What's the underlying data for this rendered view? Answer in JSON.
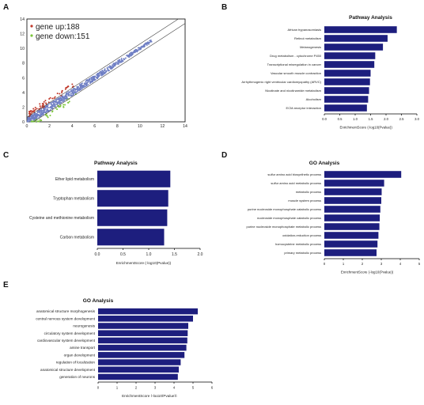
{
  "colors": {
    "bar": "#1d1e7e",
    "up": "#c0392b",
    "down": "#7cc63a",
    "cloud": "#6f7fc4",
    "axis": "#000000"
  },
  "chart_data": [
    {
      "panel": "A",
      "type": "scatter",
      "title": "",
      "xlim": [
        0,
        14
      ],
      "ylim": [
        0,
        14
      ],
      "xticks": [
        "0",
        "2",
        "4",
        "6",
        "8",
        "10",
        "12",
        "14"
      ],
      "yticks": [
        "0",
        "2",
        "4",
        "6",
        "8",
        "10",
        "12",
        "14"
      ],
      "legend": [
        "gene up:188",
        "gene down:151"
      ],
      "legend_placement": "top-left",
      "series": [
        {
          "name": "gene up:188",
          "count": 188
        },
        {
          "name": "gene down:151",
          "count": 151
        }
      ]
    },
    {
      "panel": "B",
      "type": "bar",
      "title": "Pathway Analysis",
      "xlabel": "EnrichmentScore (-log10(Pvalue))",
      "xlim": [
        0,
        3
      ],
      "xticks": [
        "0.0",
        "0.5",
        "1.0",
        "1.5",
        "2.0",
        "2.5",
        "3.0"
      ],
      "categories": [
        "African trypanosomiasis",
        "Retinol metabolism",
        "Melanogenesis",
        "Drug metabolism - cytochrome P450",
        "Transcriptional misregulation in cancer",
        "Vascular smooth muscle contraction",
        "Arrhythmogenic right ventricular cardiomyopathy (ARVC)",
        "Nicotinate and nicotinamide metabolism",
        "Alcoholism",
        "ECM-receptor interaction"
      ],
      "values": [
        2.35,
        2.05,
        1.9,
        1.65,
        1.62,
        1.5,
        1.48,
        1.45,
        1.42,
        1.38
      ]
    },
    {
      "panel": "C",
      "type": "bar",
      "title": "Pathway Analysis",
      "xlabel": "EnrichmentScore (-log10(Pvalue))",
      "xlim": [
        0,
        2
      ],
      "xticks": [
        "0.0",
        "0.5",
        "1.0",
        "1.5",
        "2.0"
      ],
      "categories": [
        "Ether lipid metabolism",
        "Tryptophan metabolism",
        "Cysteine and methionine metabolism",
        "Carbon metabolism"
      ],
      "values": [
        1.42,
        1.38,
        1.36,
        1.3
      ]
    },
    {
      "panel": "D",
      "type": "bar",
      "title": "GO Analysis",
      "xlabel": "EnrichmentScore (-log10(Pvalue))",
      "xlim": [
        0,
        5
      ],
      "xticks": [
        "0",
        "1",
        "2",
        "3",
        "4",
        "5"
      ],
      "categories": [
        "sulfur amino acid biosynthetic process",
        "sulfur amino acid metabolic process",
        "metabolic process",
        "muscle system process",
        "purine nucleoside monophosphate catabolic process",
        "nucleoside monophosphate catabolic process",
        "purine nucleoside monophosphate metabolic process",
        "oxidation-reduction process",
        "homocysteine metabolic process",
        "primary metabolic process"
      ],
      "values": [
        4.05,
        3.15,
        3.02,
        3.0,
        2.95,
        2.92,
        2.9,
        2.85,
        2.8,
        2.75
      ]
    },
    {
      "panel": "E",
      "type": "bar",
      "title": "GO Analysis",
      "xlabel": "EnrichmentScore (-log10(Pvalue))",
      "xlim": [
        0,
        6
      ],
      "xticks": [
        "0",
        "1",
        "2",
        "3",
        "4",
        "5",
        "6"
      ],
      "categories": [
        "anatomical structure morphogenesis",
        "central nervous system development",
        "neurogenesis",
        "circulatory system development",
        "cardiovascular system development",
        "amine transport",
        "organ development",
        "regulation of localization",
        "anatomical structure development",
        "generation of neurons"
      ],
      "values": [
        5.25,
        5.0,
        4.75,
        4.72,
        4.7,
        4.65,
        4.55,
        4.35,
        4.25,
        4.2
      ]
    }
  ]
}
